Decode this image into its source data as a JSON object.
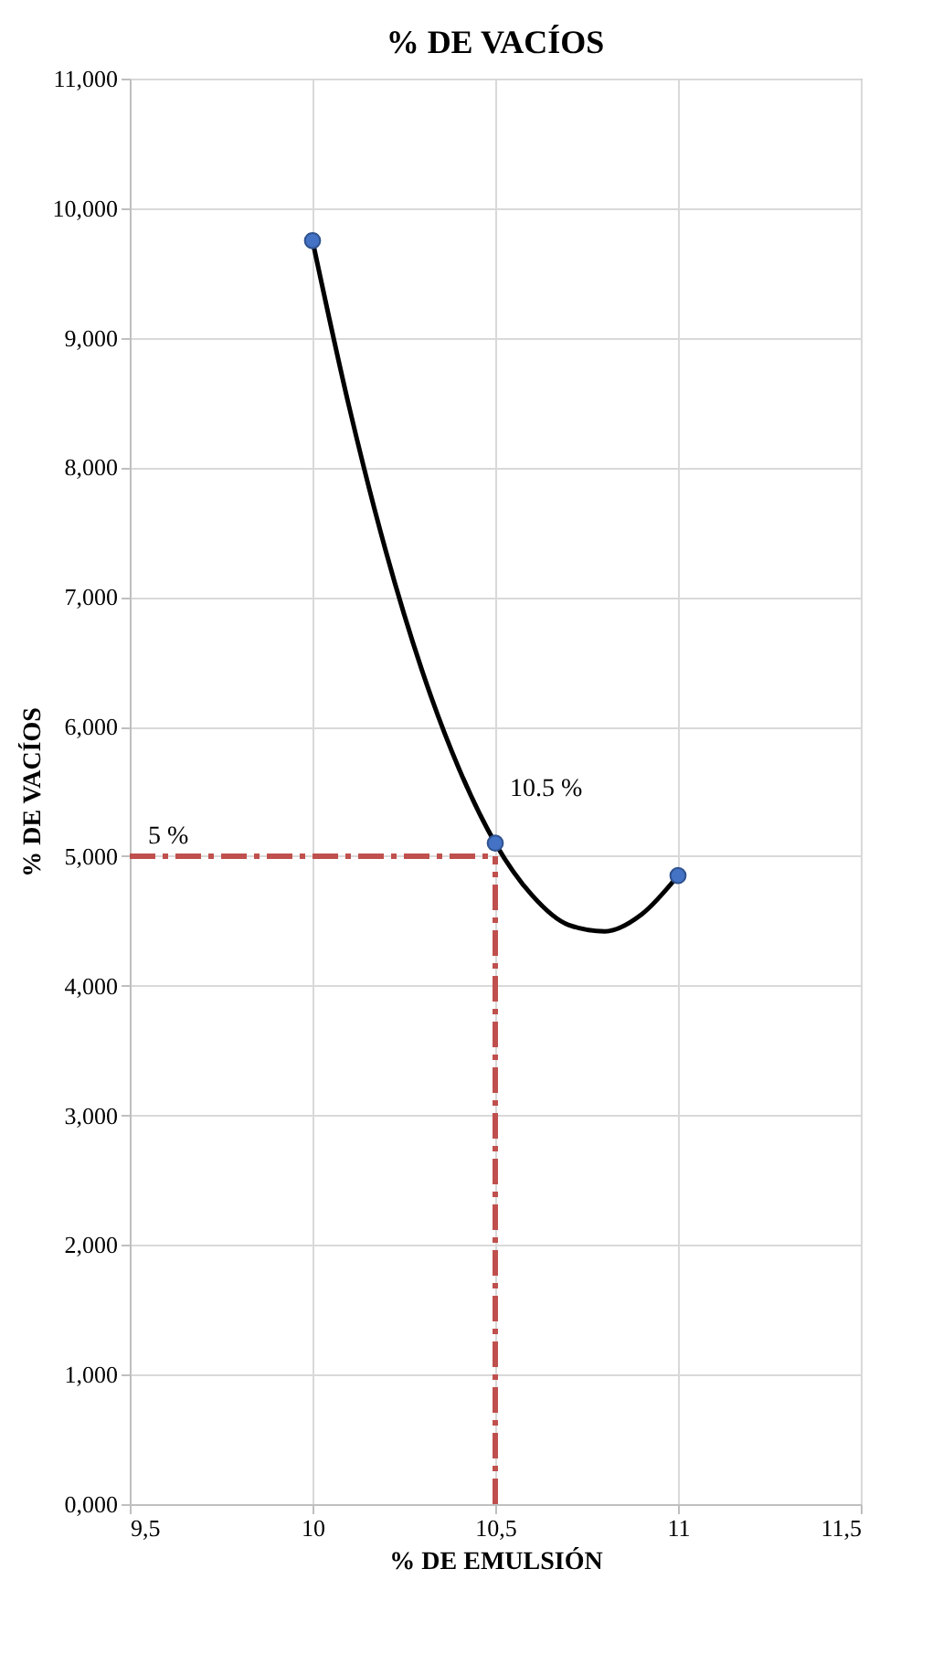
{
  "chart_data": {
    "type": "scatter",
    "title": "% DE VACÍOS",
    "xlabel": "% DE EMULSIÓN",
    "ylabel": "% DE VACÍOS",
    "series": [
      {
        "type": "line",
        "color": "#000000",
        "marker": "none",
        "x": [
          10,
          10.1,
          10.2,
          10.3,
          10.4,
          10.5,
          10.6,
          10.7,
          10.8,
          10.9,
          11
        ],
        "values": [
          9.75,
          8.47,
          7.36,
          6.43,
          5.68,
          5.1,
          4.7,
          4.47,
          4.42,
          4.55,
          4.85
        ]
      },
      {
        "color": "#4472c4",
        "marker": "circle",
        "x": [
          10,
          10.5,
          11
        ],
        "values": [
          9.75,
          5.1,
          4.85
        ]
      }
    ],
    "xlim": [
      9.5,
      11.5
    ],
    "xticks": [
      {
        "value": 9.5,
        "label": "9,5"
      },
      10,
      {
        "value": 10.5,
        "label": "10,5"
      },
      11,
      {
        "value": 11.5,
        "label": "11,5"
      }
    ],
    "ylim": [
      0,
      11
    ],
    "yticks": [
      {
        "value": 0,
        "label": "0,000"
      },
      {
        "value": 1,
        "label": "1,000"
      },
      {
        "value": 2,
        "label": "2,000"
      },
      {
        "value": 3,
        "label": "3,000"
      },
      {
        "value": 4,
        "label": "4,000"
      },
      {
        "value": 5,
        "label": "5,000"
      },
      {
        "value": 6,
        "label": "6,000"
      },
      {
        "value": 7,
        "label": "7,000"
      },
      {
        "value": 8,
        "label": "8,000"
      },
      {
        "value": 9,
        "label": "9,000"
      },
      {
        "value": 10,
        "label": "10,000"
      },
      {
        "value": 11,
        "label": "11,000"
      }
    ],
    "ref_lines": [
      {
        "axis": "y",
        "value": 5,
        "label": "5 %",
        "color": "#c0504d",
        "line_style": "dashed"
      },
      {
        "axis": "x",
        "value": 10.5,
        "label": "10.5 %",
        "color": "#c0504d",
        "line_style": "dashed"
      }
    ],
    "grid": true
  }
}
